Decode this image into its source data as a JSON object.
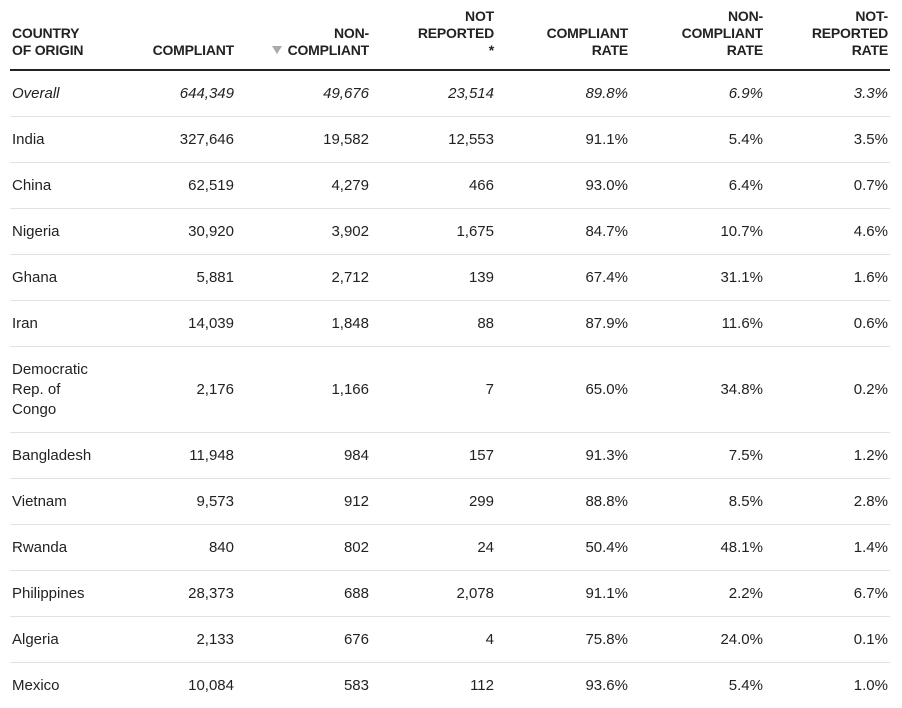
{
  "table": {
    "headers": [
      {
        "label": "COUNTRY\nOF ORIGIN",
        "align": "left",
        "sorted": false
      },
      {
        "label": "COMPLIANT",
        "align": "right",
        "sorted": false
      },
      {
        "label": "NON-\nCOMPLIANT",
        "align": "right",
        "sorted": true
      },
      {
        "label": "NOT\nREPORTED\n*",
        "align": "right",
        "sorted": false
      },
      {
        "label": "COMPLIANT\nRATE",
        "align": "right",
        "sorted": false
      },
      {
        "label": "NON-\nCOMPLIANT\nRATE",
        "align": "right",
        "sorted": false
      },
      {
        "label": "NOT-\nREPORTED\nRATE",
        "align": "right",
        "sorted": false
      }
    ],
    "rows": [
      {
        "cells": [
          "Overall",
          "644,349",
          "49,676",
          "23,514",
          "89.8%",
          "6.9%",
          "3.3%"
        ]
      },
      {
        "cells": [
          "India",
          "327,646",
          "19,582",
          "12,553",
          "91.1%",
          "5.4%",
          "3.5%"
        ]
      },
      {
        "cells": [
          "China",
          "62,519",
          "4,279",
          "466",
          "93.0%",
          "6.4%",
          "0.7%"
        ]
      },
      {
        "cells": [
          "Nigeria",
          "30,920",
          "3,902",
          "1,675",
          "84.7%",
          "10.7%",
          "4.6%"
        ]
      },
      {
        "cells": [
          "Ghana",
          "5,881",
          "2,712",
          "139",
          "67.4%",
          "31.1%",
          "1.6%"
        ]
      },
      {
        "cells": [
          "Iran",
          "14,039",
          "1,848",
          "88",
          "87.9%",
          "11.6%",
          "0.6%"
        ]
      },
      {
        "cells": [
          "Democratic\nRep. of\nCongo",
          "2,176",
          "1,166",
          "7",
          "65.0%",
          "34.8%",
          "0.2%"
        ]
      },
      {
        "cells": [
          "Bangladesh",
          "11,948",
          "984",
          "157",
          "91.3%",
          "7.5%",
          "1.2%"
        ]
      },
      {
        "cells": [
          "Vietnam",
          "9,573",
          "912",
          "299",
          "88.8%",
          "8.5%",
          "2.8%"
        ]
      },
      {
        "cells": [
          "Rwanda",
          "840",
          "802",
          "24",
          "50.4%",
          "48.1%",
          "1.4%"
        ]
      },
      {
        "cells": [
          "Philippines",
          "28,373",
          "688",
          "2,078",
          "91.1%",
          "2.2%",
          "6.7%"
        ]
      },
      {
        "cells": [
          "Algeria",
          "2,133",
          "676",
          "4",
          "75.8%",
          "24.0%",
          "0.1%"
        ]
      },
      {
        "cells": [
          "Mexico",
          "10,084",
          "583",
          "112",
          "93.6%",
          "5.4%",
          "1.0%"
        ]
      }
    ]
  }
}
